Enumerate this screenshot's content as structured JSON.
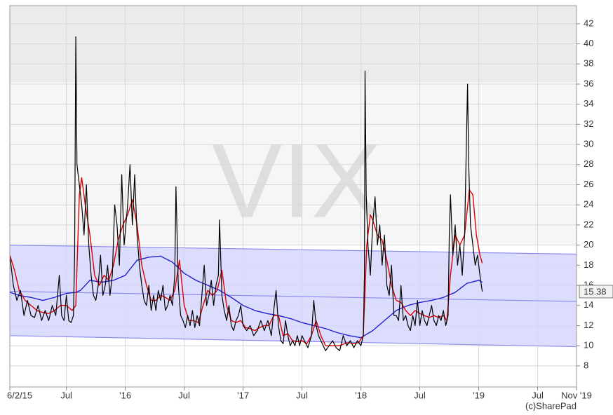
{
  "chart_data": {
    "type": "line",
    "watermark": "VIX",
    "credit": "(c)SharePad",
    "xlim": [
      2015.02,
      2019.83
    ],
    "ylim": [
      5.9,
      43.8
    ],
    "xticks": [
      {
        "value": 2015.02,
        "label": "6/2/15"
      },
      {
        "value": 2015.5,
        "label": "Jul"
      },
      {
        "value": 2016.0,
        "label": "'16"
      },
      {
        "value": 2016.5,
        "label": "Jul"
      },
      {
        "value": 2017.0,
        "label": "'17"
      },
      {
        "value": 2017.5,
        "label": "Jul"
      },
      {
        "value": 2018.0,
        "label": "'18"
      },
      {
        "value": 2018.5,
        "label": "Jul"
      },
      {
        "value": 2019.0,
        "label": "'19"
      },
      {
        "value": 2019.5,
        "label": "Jul"
      },
      {
        "value": 2019.83,
        "label": "Nov '19"
      }
    ],
    "yticks": [
      8,
      10,
      12,
      14,
      16,
      18,
      20,
      22,
      24,
      26,
      28,
      30,
      32,
      34,
      36,
      38,
      40,
      42
    ],
    "grid": true,
    "bands": [
      {
        "from": 20,
        "to": 36.2,
        "color": "#f6f6f6"
      },
      {
        "from": 36.2,
        "to": 43.8,
        "color": "#ebebeb"
      }
    ],
    "channel": {
      "x": [
        2015.02,
        2019.83
      ],
      "upper": [
        20.0,
        19.1
      ],
      "middle": [
        15.4,
        14.4
      ],
      "lower": [
        11.0,
        9.9
      ],
      "color": "#d6d6fb",
      "line_color": "#8c8cf0"
    },
    "series": [
      {
        "color": "#000000",
        "x": [
          2015.02,
          2015.05,
          2015.08,
          2015.11,
          2015.14,
          2015.17,
          2015.2,
          2015.23,
          2015.26,
          2015.29,
          2015.32,
          2015.35,
          2015.38,
          2015.41,
          2015.44,
          2015.46,
          2015.48,
          2015.5,
          2015.52,
          2015.54,
          2015.56,
          2015.57,
          2015.58,
          2015.59,
          2015.61,
          2015.63,
          2015.65,
          2015.67,
          2015.69,
          2015.71,
          2015.73,
          2015.75,
          2015.77,
          2015.79,
          2015.81,
          2015.83,
          2015.85,
          2015.87,
          2015.89,
          2015.91,
          2015.93,
          2015.95,
          2015.97,
          2015.99,
          2016.02,
          2016.04,
          2016.06,
          2016.08,
          2016.1,
          2016.12,
          2016.14,
          2016.16,
          2016.18,
          2016.2,
          2016.22,
          2016.24,
          2016.26,
          2016.28,
          2016.3,
          2016.32,
          2016.34,
          2016.36,
          2016.38,
          2016.4,
          2016.42,
          2016.43,
          2016.45,
          2016.47,
          2016.49,
          2016.51,
          2016.53,
          2016.55,
          2016.57,
          2016.59,
          2016.61,
          2016.63,
          2016.65,
          2016.67,
          2016.69,
          2016.71,
          2016.73,
          2016.75,
          2016.77,
          2016.79,
          2016.8,
          2016.82,
          2016.84,
          2016.86,
          2016.88,
          2016.9,
          2016.92,
          2016.94,
          2016.96,
          2016.98,
          2017.0,
          2017.03,
          2017.06,
          2017.09,
          2017.12,
          2017.15,
          2017.18,
          2017.21,
          2017.24,
          2017.26,
          2017.28,
          2017.3,
          2017.32,
          2017.34,
          2017.36,
          2017.38,
          2017.4,
          2017.42,
          2017.44,
          2017.46,
          2017.48,
          2017.5,
          2017.52,
          2017.55,
          2017.58,
          2017.6,
          2017.62,
          2017.64,
          2017.66,
          2017.68,
          2017.7,
          2017.73,
          2017.76,
          2017.79,
          2017.82,
          2017.85,
          2017.88,
          2017.91,
          2017.94,
          2017.97,
          2018.0,
          2018.02,
          2018.03,
          2018.035,
          2018.045,
          2018.06,
          2018.08,
          2018.1,
          2018.12,
          2018.14,
          2018.16,
          2018.18,
          2018.2,
          2018.22,
          2018.24,
          2018.26,
          2018.28,
          2018.3,
          2018.32,
          2018.34,
          2018.36,
          2018.38,
          2018.4,
          2018.42,
          2018.44,
          2018.46,
          2018.48,
          2018.5,
          2018.52,
          2018.54,
          2018.56,
          2018.58,
          2018.6,
          2018.62,
          2018.64,
          2018.66,
          2018.68,
          2018.7,
          2018.72,
          2018.74,
          2018.75,
          2018.76,
          2018.78,
          2018.8,
          2018.82,
          2018.84,
          2018.86,
          2018.88,
          2018.895,
          2018.905,
          2018.915,
          2018.93,
          2018.95,
          2018.97,
          2018.99,
          2019.01,
          2019.03
        ],
        "values": [
          19,
          16,
          14.5,
          15.5,
          13,
          14.5,
          13,
          12.8,
          14,
          12.5,
          13.5,
          12.5,
          14,
          13,
          17,
          13,
          12.5,
          15,
          12.5,
          12.3,
          13,
          19,
          40.7,
          28,
          26,
          24,
          21,
          26,
          20,
          17,
          15,
          14.5,
          16,
          19,
          15,
          16,
          18,
          15,
          17,
          24,
          22,
          18,
          27,
          20,
          24,
          28,
          22,
          27,
          21,
          18,
          16,
          14.5,
          14,
          16,
          13.5,
          15,
          13.5,
          15.5,
          14.5,
          16,
          13.5,
          14,
          15,
          14,
          17,
          25.8,
          16,
          13,
          12.5,
          11.8,
          13,
          12,
          13.5,
          11.8,
          13,
          12,
          15,
          18,
          14,
          15,
          16.5,
          14,
          16,
          17,
          22.5,
          15,
          13.5,
          12.5,
          14,
          12,
          11.5,
          12.5,
          13,
          14,
          12,
          11.5,
          12,
          11,
          11.5,
          12.5,
          11.5,
          12.5,
          11,
          13.5,
          15.5,
          12,
          10.5,
          10.2,
          12.5,
          11,
          10,
          10.5,
          10,
          11,
          10,
          11,
          10.5,
          9.8,
          11,
          14.5,
          12,
          11,
          10.5,
          10,
          9.5,
          10,
          10.5,
          9.8,
          9.5,
          11,
          10,
          10.5,
          9.8,
          10.5,
          10,
          11,
          17,
          37.3,
          25,
          20,
          17,
          22,
          24.8,
          20,
          22,
          18,
          21,
          16,
          15,
          18,
          13,
          13,
          12.5,
          16,
          12.5,
          13,
          12,
          11.5,
          13,
          12,
          14.5,
          12,
          13.5,
          12.5,
          12,
          13,
          14,
          12.5,
          12,
          13,
          12.5,
          13.5,
          12,
          13,
          21,
          25,
          19,
          22,
          18,
          20,
          17,
          21,
          30,
          36,
          28,
          22,
          20,
          18,
          19,
          17,
          15.38
        ]
      },
      {
        "color": "#e00000",
        "x": [
          2015.02,
          2015.06,
          2015.1,
          2015.15,
          2015.2,
          2015.25,
          2015.3,
          2015.35,
          2015.4,
          2015.45,
          2015.5,
          2015.55,
          2015.58,
          2015.61,
          2015.63,
          2015.66,
          2015.7,
          2015.74,
          2015.78,
          2015.82,
          2015.86,
          2015.9,
          2015.94,
          2015.98,
          2016.02,
          2016.06,
          2016.1,
          2016.14,
          2016.18,
          2016.22,
          2016.26,
          2016.3,
          2016.34,
          2016.38,
          2016.42,
          2016.46,
          2016.5,
          2016.54,
          2016.58,
          2016.62,
          2016.66,
          2016.7,
          2016.74,
          2016.78,
          2016.82,
          2016.86,
          2016.9,
          2016.94,
          2016.98,
          2017.02,
          2017.06,
          2017.1,
          2017.14,
          2017.18,
          2017.22,
          2017.26,
          2017.3,
          2017.34,
          2017.38,
          2017.42,
          2017.46,
          2017.5,
          2017.54,
          2017.58,
          2017.62,
          2017.66,
          2017.7,
          2017.74,
          2017.78,
          2017.82,
          2017.86,
          2017.9,
          2017.94,
          2017.98,
          2018.02,
          2018.05,
          2018.08,
          2018.1,
          2018.14,
          2018.18,
          2018.22,
          2018.26,
          2018.3,
          2018.34,
          2018.38,
          2018.42,
          2018.46,
          2018.5,
          2018.54,
          2018.58,
          2018.62,
          2018.66,
          2018.7,
          2018.73,
          2018.76,
          2018.8,
          2018.84,
          2018.88,
          2018.92,
          2018.95,
          2018.98,
          2019.01,
          2019.03
        ],
        "values": [
          19,
          17.5,
          15.5,
          14.5,
          14,
          13.5,
          13.3,
          13.2,
          13.5,
          14,
          14,
          13.5,
          14,
          25,
          26.7,
          24,
          21,
          17,
          16,
          17,
          16.5,
          18,
          20.5,
          22,
          23,
          24.5,
          22,
          18,
          16,
          14.5,
          14.5,
          15,
          14.8,
          14.5,
          15.5,
          18.5,
          14,
          12.5,
          12.5,
          12.3,
          14,
          15.5,
          15,
          15.5,
          17.5,
          14,
          12.5,
          12.3,
          12.5,
          11.8,
          11.7,
          11.5,
          11.8,
          12,
          12,
          13,
          13,
          11,
          11.2,
          10.5,
          10.4,
          10.5,
          10.2,
          11,
          12.5,
          11,
          10,
          10,
          10,
          10,
          10.2,
          10.3,
          10.2,
          10.3,
          11,
          20,
          23,
          22.5,
          21,
          20.5,
          18.5,
          16,
          14.5,
          14.3,
          13.5,
          13,
          13.5,
          13.2,
          13,
          12.8,
          13,
          12.8,
          13,
          12.5,
          17,
          21,
          20,
          21,
          25.5,
          25,
          21,
          19,
          18.2
        ]
      },
      {
        "color": "#2020d0",
        "x": [
          2015.02,
          2015.1,
          2015.2,
          2015.3,
          2015.4,
          2015.5,
          2015.58,
          2015.62,
          2015.7,
          2015.8,
          2015.9,
          2016.0,
          2016.1,
          2016.2,
          2016.3,
          2016.4,
          2016.5,
          2016.6,
          2016.7,
          2016.8,
          2016.9,
          2017.0,
          2017.1,
          2017.2,
          2017.3,
          2017.4,
          2017.5,
          2017.6,
          2017.7,
          2017.8,
          2017.9,
          2018.0,
          2018.1,
          2018.2,
          2018.3,
          2018.4,
          2018.5,
          2018.6,
          2018.7,
          2018.8,
          2018.9,
          2019.0,
          2019.03
        ],
        "values": [
          15.3,
          15,
          14.8,
          14.5,
          14.8,
          15.2,
          15.3,
          15.5,
          16.5,
          16.3,
          16.5,
          17,
          18.5,
          18.8,
          18.9,
          18.3,
          17.2,
          16.5,
          16,
          15.5,
          14.8,
          14,
          13.5,
          13.2,
          13,
          12.7,
          12.3,
          12,
          11.7,
          11.3,
          11,
          10.8,
          11.5,
          12.5,
          13.5,
          14,
          14.3,
          14.5,
          14.8,
          15.3,
          16.2,
          16.5,
          16.3
        ]
      }
    ]
  }
}
